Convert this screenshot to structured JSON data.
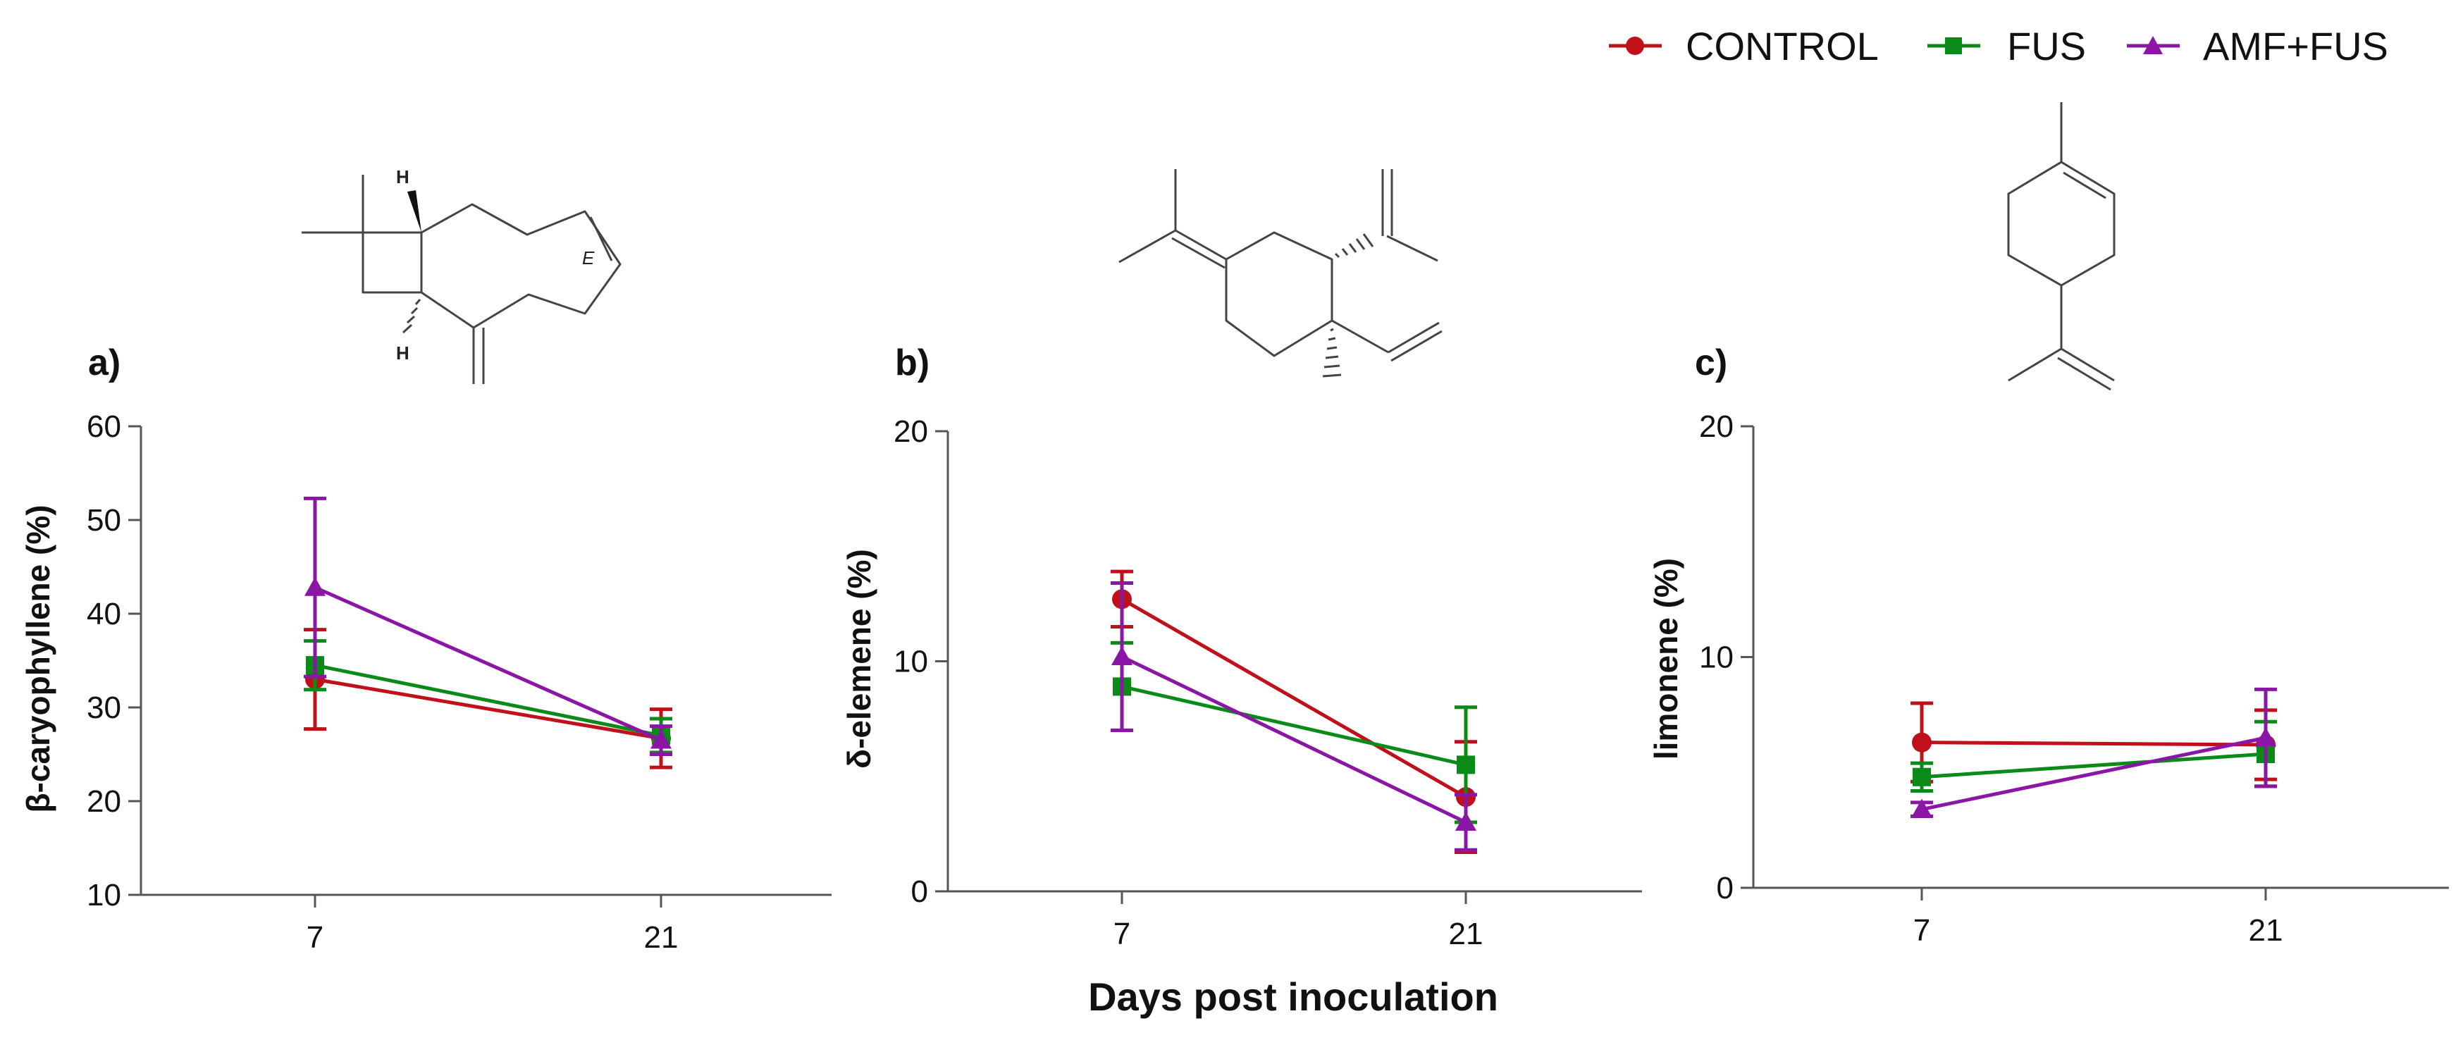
{
  "chart_data": {
    "type": "line",
    "xlabel": "Days post inoculation",
    "x": [
      7,
      21
    ],
    "legend": {
      "placement": "top-right",
      "entries": [
        {
          "name": "CONTROL",
          "color": "#c0111b",
          "marker": "circle"
        },
        {
          "name": "FUS",
          "color": "#0a8a16",
          "marker": "square"
        },
        {
          "name": "AMF+FUS",
          "color": "#8a16a6",
          "marker": "triangle"
        }
      ]
    },
    "panels": [
      {
        "id": "a",
        "label": "a)",
        "ylabel": "β-caryophyllene (%)",
        "ylim": [
          10,
          60
        ],
        "yticks": [
          10,
          20,
          30,
          40,
          50,
          60
        ],
        "series": [
          {
            "name": "CONTROL",
            "values": [
              33.0,
              26.7
            ],
            "err": [
              5.3,
              3.1
            ]
          },
          {
            "name": "FUS",
            "values": [
              34.5,
              27.0
            ],
            "err": [
              2.6,
              1.8
            ]
          },
          {
            "name": "AMF+FUS",
            "values": [
              42.8,
              26.5
            ],
            "err": [
              9.5,
              1.5
            ]
          }
        ]
      },
      {
        "id": "b",
        "label": "b)",
        "ylabel": "δ-elemene (%)",
        "ylim": [
          0,
          20
        ],
        "yticks": [
          0,
          10,
          20
        ],
        "series": [
          {
            "name": "CONTROL",
            "values": [
              12.7,
              4.1
            ],
            "err": [
              1.2,
              2.4
            ]
          },
          {
            "name": "FUS",
            "values": [
              8.9,
              5.5
            ],
            "err": [
              1.9,
              2.5
            ]
          },
          {
            "name": "AMF+FUS",
            "values": [
              10.2,
              3.0
            ],
            "err": [
              3.2,
              1.2
            ]
          }
        ]
      },
      {
        "id": "c",
        "label": "c)",
        "ylabel": "limonene (%)",
        "ylim": [
          0,
          20
        ],
        "yticks": [
          0,
          10,
          20
        ],
        "series": [
          {
            "name": "CONTROL",
            "values": [
              6.3,
              6.2
            ],
            "err": [
              1.7,
              1.5
            ]
          },
          {
            "name": "FUS",
            "values": [
              4.8,
              5.8
            ],
            "err": [
              0.6,
              1.4
            ]
          },
          {
            "name": "AMF+FUS",
            "values": [
              3.4,
              6.5
            ],
            "err": [
              0.3,
              2.1
            ]
          }
        ]
      }
    ]
  },
  "structures": {
    "a": {
      "atom_labels": [
        "H",
        "H",
        "E"
      ]
    }
  }
}
